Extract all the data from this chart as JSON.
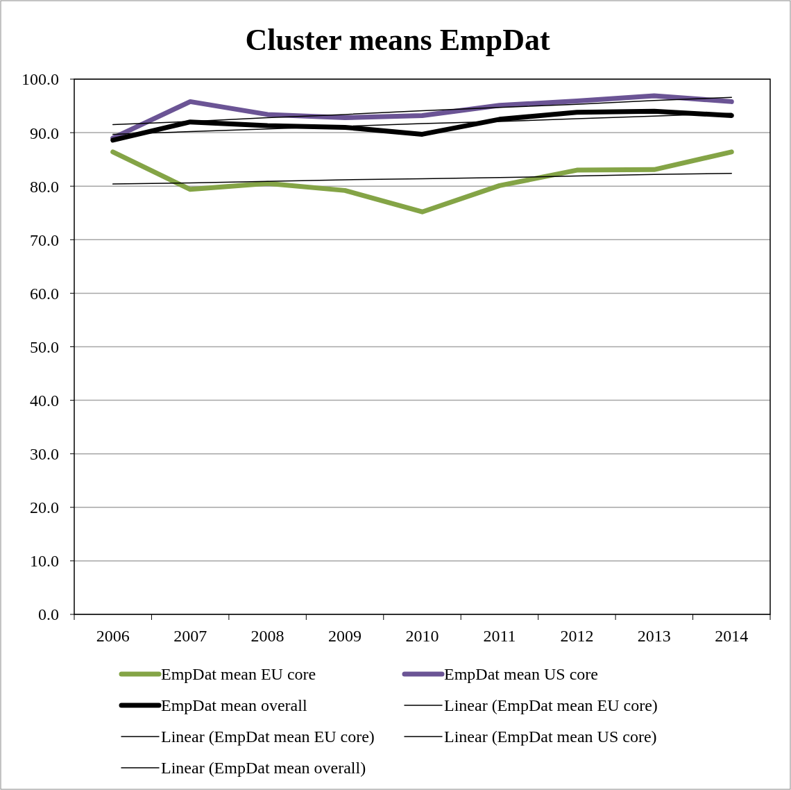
{
  "chart_data": {
    "type": "line",
    "title": "Cluster means EmpDat",
    "categories": [
      "2006",
      "2007",
      "2008",
      "2009",
      "2010",
      "2011",
      "2012",
      "2013",
      "2014"
    ],
    "ylim": [
      0,
      100
    ],
    "yticks": [
      {
        "value": 0,
        "label": "0.0"
      },
      {
        "value": 10,
        "label": "10.0"
      },
      {
        "value": 20,
        "label": "20.0"
      },
      {
        "value": 30,
        "label": "30.0"
      },
      {
        "value": 40,
        "label": "40.0"
      },
      {
        "value": 50,
        "label": "50.0"
      },
      {
        "value": 60,
        "label": "60.0"
      },
      {
        "value": 70,
        "label": "70.0"
      },
      {
        "value": 80,
        "label": "80.0"
      },
      {
        "value": 90,
        "label": "90.0"
      },
      {
        "value": 100,
        "label": "100.0"
      }
    ],
    "grid": "y",
    "legend": "bottom",
    "series": [
      {
        "name": "EmpDat mean EU core",
        "color": "#84a446",
        "values": [
          86.4,
          79.4,
          80.5,
          79.2,
          75.2,
          80.1,
          83.0,
          83.1,
          86.4
        ]
      },
      {
        "name": "EmpDat mean US core",
        "color": "#6b5495",
        "values": [
          89.0,
          95.8,
          93.4,
          92.8,
          93.2,
          95.1,
          95.9,
          96.9,
          95.8
        ]
      },
      {
        "name": "EmpDat mean overall",
        "color": "#000000",
        "values": [
          88.6,
          92.0,
          91.3,
          91.0,
          89.7,
          92.5,
          93.8,
          94.0,
          93.2
        ]
      },
      {
        "name": "Linear (EmpDat mean EU core)",
        "color": "#000000",
        "type": "line",
        "values": [
          80.4,
          80.6,
          80.9,
          81.2,
          81.4,
          81.6,
          81.9,
          82.2,
          82.4
        ]
      },
      {
        "name": "Linear (EmpDat mean EU core)",
        "color": "#000000",
        "type": "line",
        "values": [
          null,
          null,
          null,
          null,
          null,
          null,
          null,
          null,
          null
        ]
      },
      {
        "name": "Linear (EmpDat mean US core)",
        "color": "#000000",
        "type": "line",
        "values": [
          91.5,
          92.1,
          92.8,
          93.4,
          94.1,
          94.7,
          95.3,
          96.0,
          96.6
        ]
      },
      {
        "name": "Linear (EmpDat mean overall)",
        "color": "#000000",
        "type": "line",
        "values": [
          89.7,
          90.2,
          90.7,
          91.2,
          91.7,
          92.1,
          92.6,
          93.1,
          93.6
        ]
      }
    ]
  }
}
